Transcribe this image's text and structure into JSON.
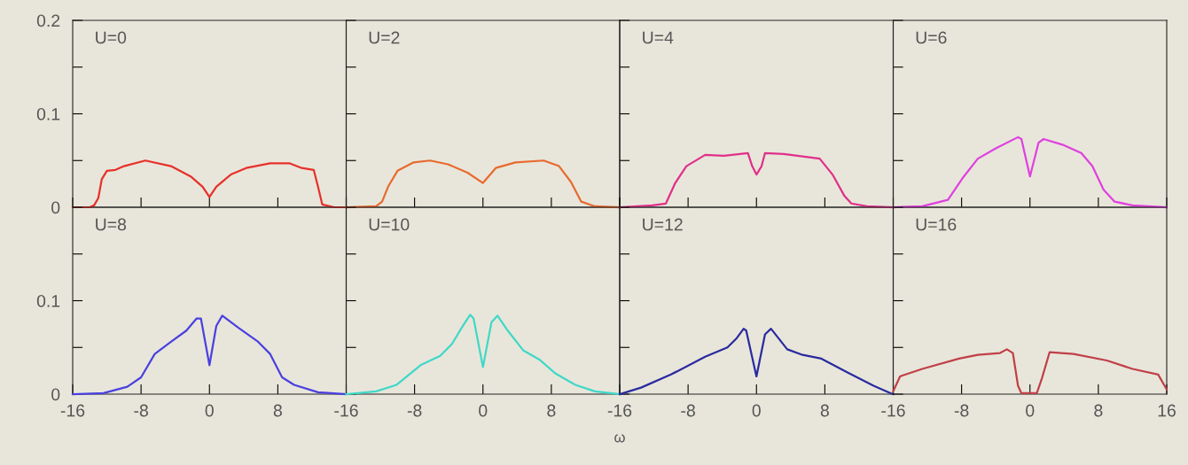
{
  "chart_data": [
    {
      "type": "line",
      "annotations": [
        "U=0"
      ],
      "x": [
        -16,
        -14,
        -13.5,
        -13,
        -12.6,
        -12,
        -11,
        -10,
        -7.5,
        -4.5,
        -2.2,
        -0.8,
        0,
        0.8,
        2.5,
        4.3,
        7.1,
        9.4,
        10.8,
        12.2,
        12.7,
        13.2,
        14.6,
        16
      ],
      "series": [
        {
          "color": "#e8302a",
          "values": [
            0,
            0,
            0.002,
            0.01,
            0.03,
            0.039,
            0.04,
            0.044,
            0.05,
            0.044,
            0.033,
            0.022,
            0.011,
            0.022,
            0.035,
            0.042,
            0.047,
            0.047,
            0.042,
            0.04,
            0.022,
            0.003,
            0,
            0
          ]
        }
      ],
      "xlim": [
        -16,
        16
      ],
      "ylim": [
        0,
        0.2
      ],
      "xticks": [
        -16,
        -8,
        0,
        8,
        16
      ],
      "yticks": [
        0,
        {
          "value": 0.05,
          "label": null
        },
        0.1,
        {
          "value": 0.15,
          "label": null
        },
        0.2
      ],
      "tick_labels": "y"
    },
    {
      "type": "line",
      "annotations": [
        "U=2"
      ],
      "x": [
        -16,
        -12.5,
        -11.8,
        -11.1,
        -10,
        -8.1,
        -6.2,
        -4.1,
        -1.8,
        0,
        1.5,
        3.8,
        7.1,
        8.9,
        10.3,
        11.5,
        13.1,
        16
      ],
      "series": [
        {
          "color": "#e86a30",
          "values": [
            0,
            0.001,
            0.006,
            0.022,
            0.039,
            0.048,
            0.05,
            0.046,
            0.037,
            0.026,
            0.042,
            0.048,
            0.05,
            0.044,
            0.027,
            0.006,
            0.001,
            0
          ]
        }
      ],
      "xlim": [
        -16,
        16
      ],
      "ylim": [
        0,
        0.2
      ],
      "xticks": [
        -16,
        -8,
        0,
        8,
        16
      ],
      "yticks": [
        0,
        0.05,
        0.1,
        0.15,
        0.2
      ],
      "tick_labels": false
    },
    {
      "type": "line",
      "annotations": [
        "U=4"
      ],
      "x": [
        -16,
        -12.2,
        -10.6,
        -9.5,
        -8.2,
        -6,
        -3.8,
        -1,
        -0.5,
        0,
        0.6,
        1,
        3.2,
        7.4,
        8.9,
        10.3,
        11.1,
        12.9,
        16
      ],
      "series": [
        {
          "color": "#e0308a",
          "values": [
            0,
            0.002,
            0.004,
            0.026,
            0.044,
            0.056,
            0.055,
            0.058,
            0.044,
            0.035,
            0.044,
            0.058,
            0.057,
            0.052,
            0.035,
            0.012,
            0.004,
            0.001,
            0
          ]
        }
      ],
      "xlim": [
        -16,
        16
      ],
      "ylim": [
        0,
        0.2
      ],
      "xticks": [
        -16,
        -8,
        0,
        8,
        16
      ],
      "yticks": [
        0,
        0.05,
        0.1,
        0.15,
        0.2
      ],
      "tick_labels": false
    },
    {
      "type": "line",
      "annotations": [
        "U=6"
      ],
      "x": [
        -16,
        -12.6,
        -9.6,
        -7.9,
        -6.1,
        -4,
        -1.4,
        -1,
        0,
        1,
        1.6,
        3.8,
        6,
        7.3,
        8.6,
        9.9,
        12,
        16
      ],
      "series": [
        {
          "color": "#e040e0",
          "values": [
            0,
            0.001,
            0.008,
            0.031,
            0.052,
            0.063,
            0.075,
            0.073,
            0.033,
            0.069,
            0.073,
            0.067,
            0.058,
            0.044,
            0.019,
            0.006,
            0.002,
            0
          ]
        }
      ],
      "xlim": [
        -16,
        16
      ],
      "ylim": [
        0,
        0.2
      ],
      "xticks": [
        -16,
        -8,
        0,
        8,
        16
      ],
      "yticks": [
        0,
        0.05,
        0.1,
        0.15,
        0.2
      ],
      "tick_labels": false
    },
    {
      "type": "line",
      "annotations": [
        "U=8"
      ],
      "x": [
        -16,
        -12.4,
        -9.6,
        -8,
        -6.4,
        -4.5,
        -2.7,
        -1.5,
        -1,
        0,
        0.8,
        1.5,
        3.4,
        5.7,
        7.1,
        8.5,
        9.9,
        12.7,
        16
      ],
      "series": [
        {
          "color": "#4a40e0",
          "values": [
            0,
            0.001,
            0.008,
            0.018,
            0.043,
            0.056,
            0.068,
            0.081,
            0.081,
            0.031,
            0.073,
            0.084,
            0.071,
            0.056,
            0.043,
            0.018,
            0.01,
            0.002,
            0
          ]
        }
      ],
      "xlim": [
        -16,
        16
      ],
      "ylim": [
        0,
        0.2
      ],
      "xticks": [
        -16,
        -8,
        0,
        8
      ],
      "yticks": [
        0,
        {
          "value": 0.05,
          "label": null
        },
        0.1,
        {
          "value": 0.15,
          "label": null
        },
        {
          "value": 0.2,
          "label": null
        }
      ]
    },
    {
      "type": "line",
      "annotations": [
        "U=10"
      ],
      "xlabel": "ω",
      "x": [
        -16,
        -12.5,
        -10.1,
        -7.3,
        -5,
        -3.6,
        -2.5,
        -1.5,
        -1.1,
        0,
        1,
        1.7,
        2.9,
        4.7,
        6.6,
        8.5,
        10.8,
        13.1,
        16
      ],
      "series": [
        {
          "color": "#40d8c8",
          "values": [
            0,
            0.003,
            0.01,
            0.031,
            0.041,
            0.054,
            0.071,
            0.085,
            0.081,
            0.029,
            0.077,
            0.084,
            0.068,
            0.047,
            0.037,
            0.022,
            0.01,
            0.003,
            0
          ]
        }
      ],
      "xlim": [
        -16,
        16
      ],
      "ylim": [
        0,
        0.2
      ],
      "xticks": [
        -16,
        -8,
        0,
        8
      ],
      "yticks": [
        0,
        0.05,
        0.1,
        0.15,
        0.2
      ],
      "tick_labels": "x"
    },
    {
      "type": "line",
      "annotations": [
        "U=12"
      ],
      "x": [
        -16,
        -13.5,
        -10,
        -6,
        -3.4,
        -2.3,
        -1.5,
        -1.2,
        0,
        1,
        1.7,
        3.6,
        5.4,
        7.6,
        10.7,
        13.7,
        15.7,
        16
      ],
      "series": [
        {
          "color": "#2a2aa0",
          "values": [
            0,
            0.007,
            0.021,
            0.04,
            0.05,
            0.06,
            0.07,
            0.068,
            0.019,
            0.064,
            0.07,
            0.048,
            0.042,
            0.038,
            0.023,
            0.009,
            0.001,
            0
          ]
        }
      ],
      "xlim": [
        -16,
        16
      ],
      "ylim": [
        0,
        0.2
      ],
      "xticks": [
        -16,
        -8,
        0,
        8
      ],
      "yticks": [
        0,
        0.05,
        0.1,
        0.15,
        0.2
      ],
      "tick_labels": "x"
    },
    {
      "type": "line",
      "annotations": [
        "U=16"
      ],
      "x": [
        -16,
        -15.2,
        -12.6,
        -8.3,
        -6.1,
        -3.5,
        -2.7,
        -2,
        -1.4,
        -1,
        0.8,
        1.4,
        2.3,
        5.1,
        9,
        12,
        15,
        16
      ],
      "series": [
        {
          "color": "#c04048",
          "values": [
            0.003,
            0.019,
            0.027,
            0.038,
            0.042,
            0.044,
            0.048,
            0.044,
            0.009,
            0.001,
            0.001,
            0.017,
            0.045,
            0.043,
            0.036,
            0.027,
            0.021,
            0.005
          ]
        }
      ],
      "xlim": [
        -16,
        16
      ],
      "ylim": [
        0,
        0.2
      ],
      "xticks": [
        -16,
        -8,
        0,
        8,
        16
      ],
      "yticks": [
        0,
        0.05,
        0.1,
        0.15,
        0.2
      ],
      "tick_labels": "x"
    }
  ]
}
